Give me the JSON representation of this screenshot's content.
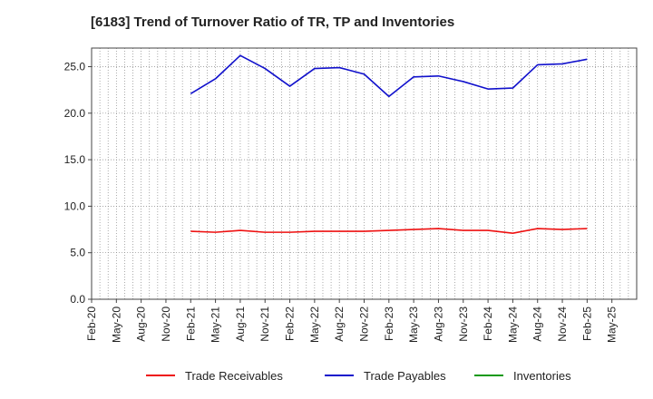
{
  "chart_data": {
    "type": "line",
    "title": "[6183]  Trend of Turnover Ratio of TR, TP and Inventories",
    "xlabel": "",
    "ylabel": "",
    "ylim": [
      0,
      27
    ],
    "yticks": [
      "0.0",
      "5.0",
      "10.0",
      "15.0",
      "20.0",
      "25.0"
    ],
    "ytick_values": [
      0,
      5,
      10,
      15,
      20,
      25
    ],
    "x_tick_labels": [
      "Feb-20",
      "May-20",
      "Aug-20",
      "Nov-20",
      "Feb-21",
      "May-21",
      "Aug-21",
      "Nov-21",
      "Feb-22",
      "May-22",
      "Aug-22",
      "Nov-22",
      "Feb-23",
      "May-23",
      "Aug-23",
      "Nov-23",
      "Feb-24",
      "May-24",
      "Aug-24",
      "Nov-24",
      "Feb-25",
      "May-25"
    ],
    "grid": true,
    "legend_position": "bottom",
    "series": [
      {
        "name": "Trade Receivables",
        "color": "#ee1111",
        "values": [
          null,
          null,
          null,
          null,
          7.3,
          7.2,
          7.4,
          7.2,
          7.2,
          7.3,
          7.3,
          7.3,
          7.4,
          7.5,
          7.6,
          7.4,
          7.4,
          7.1,
          7.6,
          7.5,
          7.6,
          null
        ]
      },
      {
        "name": "Trade Payables",
        "color": "#1111cc",
        "values": [
          null,
          null,
          null,
          null,
          22.1,
          23.7,
          26.2,
          24.8,
          22.9,
          24.8,
          24.9,
          24.2,
          21.8,
          23.9,
          24.0,
          23.4,
          22.6,
          22.7,
          25.2,
          25.3,
          25.8,
          null
        ]
      },
      {
        "name": "Inventories",
        "color": "#119911",
        "values": [
          null,
          null,
          null,
          null,
          null,
          null,
          null,
          null,
          null,
          null,
          null,
          null,
          null,
          null,
          null,
          null,
          null,
          null,
          null,
          null,
          null,
          null
        ]
      }
    ]
  }
}
